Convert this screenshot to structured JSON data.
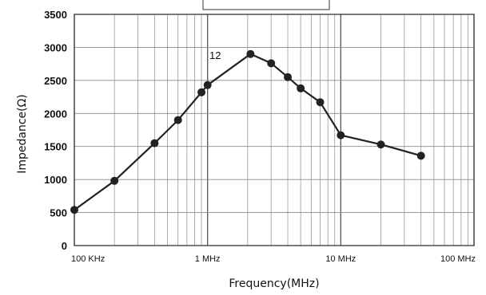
{
  "chart_data": {
    "type": "line",
    "title": "",
    "xlabel": "Frequency(MHz)",
    "ylabel": "Impedance(Ω)",
    "x_scale": "log",
    "xlim": [
      0.1,
      100
    ],
    "ylim": [
      0,
      3500
    ],
    "grid": true,
    "y_ticks": [
      "0",
      "500",
      "1000",
      "1500",
      "2000",
      "2500",
      "3000",
      "3500"
    ],
    "x_ticks": [
      {
        "value": 0.1,
        "label": "100 KHz"
      },
      {
        "value": 1,
        "label": "1 MHz"
      },
      {
        "value": 10,
        "label": "10 MHz"
      },
      {
        "value": 100,
        "label": "100 MHz"
      }
    ],
    "annotation": "12",
    "series": [
      {
        "color": "#222222",
        "points": [
          {
            "x": 0.1,
            "y": 540
          },
          {
            "x": 0.2,
            "y": 980
          },
          {
            "x": 0.4,
            "y": 1550
          },
          {
            "x": 0.6,
            "y": 1900
          },
          {
            "x": 0.9,
            "y": 2320
          },
          {
            "x": 1.0,
            "y": 2430
          },
          {
            "x": 2.1,
            "y": 2900
          },
          {
            "x": 3.0,
            "y": 2760
          },
          {
            "x": 4.0,
            "y": 2550
          },
          {
            "x": 5.0,
            "y": 2380
          },
          {
            "x": 7.0,
            "y": 2170
          },
          {
            "x": 10.0,
            "y": 1670
          },
          {
            "x": 20.0,
            "y": 1530
          },
          {
            "x": 40.0,
            "y": 1360
          }
        ]
      }
    ]
  }
}
